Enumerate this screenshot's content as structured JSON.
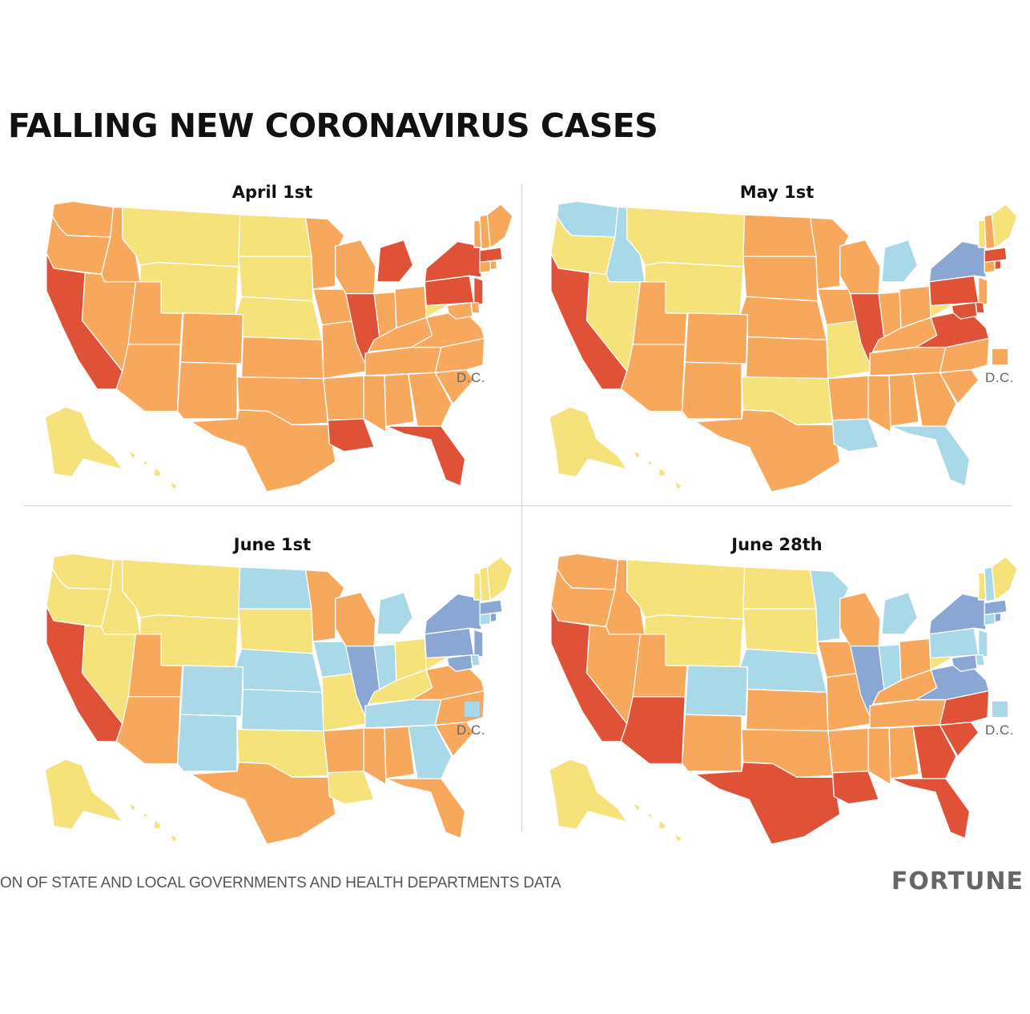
{
  "title": "FALLING NEW CORONAVIRUS CASES",
  "colors": {
    "red": "#e05238",
    "orange": "#f8a85c",
    "yellow": "#f6e27a",
    "lightblue": "#a9d8e8",
    "blue": "#8aa6d3"
  },
  "maps": [
    {
      "title": "April 1st",
      "dc_label": "D.C.",
      "dc": "orange",
      "states": {
        "WA": "orange",
        "OR": "orange",
        "CA": "red",
        "ID": "orange",
        "NV": "orange",
        "UT": "orange",
        "AZ": "orange",
        "MT": "yellow",
        "WY": "yellow",
        "CO": "orange",
        "NM": "orange",
        "ND": "yellow",
        "SD": "yellow",
        "NE": "yellow",
        "KS": "orange",
        "OK": "orange",
        "TX": "orange",
        "MN": "orange",
        "IA": "orange",
        "MO": "orange",
        "AR": "orange",
        "LA": "red",
        "WI": "orange",
        "IL": "red",
        "MI": "red",
        "IN": "orange",
        "OH": "orange",
        "KY": "orange",
        "TN": "orange",
        "MS": "orange",
        "AL": "orange",
        "GA": "orange",
        "FL": "red",
        "SC": "orange",
        "NC": "orange",
        "VA": "orange",
        "WV": "yellow",
        "PA": "red",
        "NY": "red",
        "NJ": "red",
        "DE": "orange",
        "MD": "orange",
        "CT": "orange",
        "RI": "orange",
        "MA": "red",
        "VT": "orange",
        "NH": "orange",
        "ME": "orange",
        "AK": "yellow",
        "HI": "yellow"
      }
    },
    {
      "title": "May 1st",
      "dc_label": "D.C.",
      "dc": "orange",
      "states": {
        "WA": "lightblue",
        "OR": "yellow",
        "CA": "red",
        "ID": "lightblue",
        "NV": "yellow",
        "UT": "orange",
        "AZ": "orange",
        "MT": "yellow",
        "WY": "yellow",
        "CO": "orange",
        "NM": "orange",
        "ND": "orange",
        "SD": "orange",
        "NE": "orange",
        "KS": "orange",
        "OK": "yellow",
        "TX": "orange",
        "MN": "orange",
        "IA": "orange",
        "MO": "yellow",
        "AR": "orange",
        "LA": "lightblue",
        "WI": "orange",
        "IL": "red",
        "MI": "lightblue",
        "IN": "orange",
        "OH": "orange",
        "KY": "orange",
        "TN": "orange",
        "MS": "orange",
        "AL": "orange",
        "GA": "orange",
        "FL": "lightblue",
        "SC": "orange",
        "NC": "orange",
        "VA": "red",
        "WV": "yellow",
        "PA": "red",
        "NY": "blue",
        "NJ": "orange",
        "DE": "red",
        "MD": "red",
        "CT": "orange",
        "RI": "red",
        "MA": "red",
        "VT": "yellow",
        "NH": "orange",
        "ME": "yellow",
        "AK": "yellow",
        "HI": "yellow"
      }
    },
    {
      "title": "June 1st",
      "dc_label": "D.C.",
      "dc": "lightblue",
      "states": {
        "WA": "yellow",
        "OR": "yellow",
        "CA": "red",
        "ID": "yellow",
        "NV": "yellow",
        "UT": "orange",
        "AZ": "orange",
        "MT": "yellow",
        "WY": "yellow",
        "CO": "lightblue",
        "NM": "lightblue",
        "ND": "lightblue",
        "SD": "yellow",
        "NE": "lightblue",
        "KS": "lightblue",
        "OK": "yellow",
        "TX": "orange",
        "MN": "orange",
        "IA": "lightblue",
        "MO": "yellow",
        "AR": "orange",
        "LA": "yellow",
        "WI": "orange",
        "IL": "blue",
        "MI": "lightblue",
        "IN": "lightblue",
        "OH": "yellow",
        "KY": "yellow",
        "TN": "lightblue",
        "MS": "orange",
        "AL": "orange",
        "GA": "lightblue",
        "FL": "orange",
        "SC": "orange",
        "NC": "orange",
        "VA": "orange",
        "WV": "yellow",
        "PA": "blue",
        "NY": "blue",
        "NJ": "blue",
        "DE": "lightblue",
        "MD": "blue",
        "CT": "lightblue",
        "RI": "blue",
        "MA": "blue",
        "VT": "yellow",
        "NH": "yellow",
        "ME": "yellow",
        "AK": "yellow",
        "HI": "yellow"
      }
    },
    {
      "title": "June 28th",
      "dc_label": "D.C.",
      "dc": "lightblue",
      "states": {
        "WA": "orange",
        "OR": "orange",
        "CA": "red",
        "ID": "orange",
        "NV": "orange",
        "UT": "orange",
        "AZ": "red",
        "MT": "yellow",
        "WY": "yellow",
        "CO": "lightblue",
        "NM": "orange",
        "ND": "yellow",
        "SD": "yellow",
        "NE": "lightblue",
        "KS": "orange",
        "OK": "orange",
        "TX": "red",
        "MN": "lightblue",
        "IA": "orange",
        "MO": "orange",
        "AR": "orange",
        "LA": "red",
        "WI": "orange",
        "IL": "blue",
        "MI": "lightblue",
        "IN": "lightblue",
        "OH": "orange",
        "KY": "orange",
        "TN": "orange",
        "MS": "orange",
        "AL": "orange",
        "GA": "red",
        "FL": "red",
        "SC": "red",
        "NC": "red",
        "VA": "blue",
        "WV": "yellow",
        "PA": "lightblue",
        "NY": "blue",
        "NJ": "lightblue",
        "DE": "lightblue",
        "MD": "blue",
        "CT": "lightblue",
        "RI": "blue",
        "MA": "blue",
        "VT": "yellow",
        "NH": "lightblue",
        "ME": "yellow",
        "AK": "yellow",
        "HI": "yellow"
      }
    }
  ],
  "source": "ON OF STATE AND LOCAL GOVERNMENTS AND HEALTH DEPARTMENTS DATA",
  "brand": "FORTUNE"
}
